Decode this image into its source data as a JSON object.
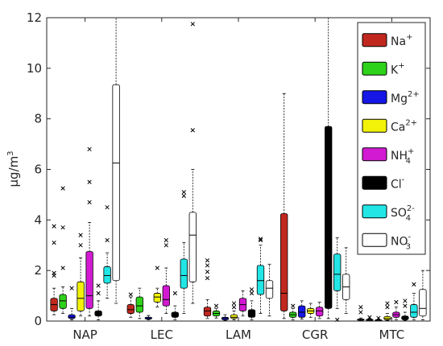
{
  "chart_data": {
    "type": "box",
    "title": "",
    "xlabel": "",
    "ylabel_main": "μg/m",
    "ylabel_sup": "3",
    "ylim": [
      0,
      12
    ],
    "y_ticks": [
      0,
      2,
      4,
      6,
      8,
      10,
      12
    ],
    "y_tick_labels": [
      "0",
      "2",
      "4",
      "6",
      "8",
      "10",
      "12"
    ],
    "categories": [
      "NAP",
      "LEC",
      "LAM",
      "CGR",
      "MTC"
    ],
    "legend_position": "top-right",
    "series": [
      {
        "name": "Na+",
        "base": "Na",
        "sup": "+",
        "sub": "",
        "color": "#c0281e"
      },
      {
        "name": "K+",
        "base": "K",
        "sup": "+",
        "sub": "",
        "color": "#2ed21a"
      },
      {
        "name": "Mg2+",
        "base": "Mg",
        "sup": "2+",
        "sub": "",
        "color": "#1616e6"
      },
      {
        "name": "Ca2+",
        "base": "Ca",
        "sup": "2+",
        "sub": "",
        "color": "#f2f208"
      },
      {
        "name": "NH4+",
        "base": "NH",
        "sup": "+",
        "sub": "4",
        "color": "#d21ad2"
      },
      {
        "name": "Cl-",
        "base": "Cl",
        "sup": "-",
        "sub": "",
        "color": "#000000"
      },
      {
        "name": "SO42-",
        "base": "SO",
        "sup": "2-",
        "sub": "4",
        "color": "#22e6e6"
      },
      {
        "name": "NO3-",
        "base": "NO",
        "sup": "-",
        "sub": "3",
        "color": "#ffffff"
      }
    ],
    "boxes": [
      [
        {
          "wlo": 0.25,
          "q1": 0.4,
          "med": 0.65,
          "q3": 0.9,
          "whi": 1.3,
          "out": [
            1.8,
            1.9,
            3.1,
            3.75
          ]
        },
        {
          "wlo": 0.3,
          "q1": 0.5,
          "med": 0.8,
          "q3": 1.05,
          "whi": 1.35,
          "out": [
            2.1,
            3.7,
            5.25
          ]
        },
        {
          "wlo": 0.05,
          "q1": 0.1,
          "med": 0.15,
          "q3": 0.25,
          "whi": 0.5,
          "out": [
            1.3
          ]
        },
        {
          "wlo": 0.2,
          "q1": 0.4,
          "med": 0.9,
          "q3": 1.55,
          "whi": 2.5,
          "out": [
            3.0,
            3.4
          ]
        },
        {
          "wlo": 0.2,
          "q1": 0.5,
          "med": 1.0,
          "q3": 2.75,
          "whi": 3.9,
          "out": [
            4.7,
            5.5,
            6.8
          ]
        },
        {
          "wlo": 0.05,
          "q1": 0.2,
          "med": 0.3,
          "q3": 0.4,
          "whi": 0.8,
          "out": [
            1.1,
            1.4
          ]
        },
        {
          "wlo": 0.9,
          "q1": 1.5,
          "med": 1.8,
          "q3": 2.15,
          "whi": 2.7,
          "out": [
            3.2,
            4.5
          ]
        },
        {
          "wlo": 0.7,
          "q1": 1.6,
          "med": 6.25,
          "q3": 9.35,
          "whi": 12.0,
          "out": []
        }
      ],
      [
        {
          "wlo": 0.15,
          "q1": 0.3,
          "med": 0.45,
          "q3": 0.65,
          "whi": 0.95,
          "out": [
            1.05
          ]
        },
        {
          "wlo": 0.1,
          "q1": 0.35,
          "med": 0.6,
          "q3": 0.95,
          "whi": 1.3,
          "out": []
        },
        {
          "wlo": 0.05,
          "q1": 0.08,
          "med": 0.1,
          "q3": 0.15,
          "whi": 0.22,
          "out": []
        },
        {
          "wlo": 0.55,
          "q1": 0.75,
          "med": 0.95,
          "q3": 1.1,
          "whi": 1.3,
          "out": [
            2.1
          ]
        },
        {
          "wlo": 0.3,
          "q1": 0.6,
          "med": 0.85,
          "q3": 1.4,
          "whi": 2.1,
          "out": [
            3.0,
            3.2
          ]
        },
        {
          "wlo": 0.05,
          "q1": 0.15,
          "med": 0.25,
          "q3": 0.35,
          "whi": 0.6,
          "out": [
            1.1
          ]
        },
        {
          "wlo": 0.3,
          "q1": 1.3,
          "med": 1.8,
          "q3": 2.45,
          "whi": 3.1,
          "out": [
            4.95,
            5.1
          ]
        },
        {
          "wlo": 0.7,
          "q1": 1.55,
          "med": 3.4,
          "q3": 4.3,
          "whi": 6.0,
          "out": [
            7.55,
            11.75
          ]
        }
      ],
      [
        {
          "wlo": 0.1,
          "q1": 0.2,
          "med": 0.4,
          "q3": 0.55,
          "whi": 0.85,
          "out": [
            1.7,
            1.95,
            2.2,
            2.4
          ]
        },
        {
          "wlo": 0.12,
          "q1": 0.2,
          "med": 0.3,
          "q3": 0.4,
          "whi": 0.5,
          "out": [
            0.6
          ]
        },
        {
          "wlo": 0.02,
          "q1": 0.05,
          "med": 0.1,
          "q3": 0.15,
          "whi": 0.25,
          "out": []
        },
        {
          "wlo": 0.05,
          "q1": 0.1,
          "med": 0.15,
          "q3": 0.25,
          "whi": 0.4,
          "out": [
            0.55,
            0.7
          ]
        },
        {
          "wlo": 0.2,
          "q1": 0.4,
          "med": 0.65,
          "q3": 0.9,
          "whi": 1.2,
          "out": []
        },
        {
          "wlo": 0.05,
          "q1": 0.15,
          "med": 0.3,
          "q3": 0.45,
          "whi": 0.8,
          "out": [
            1.1,
            1.25
          ]
        },
        {
          "wlo": 0.3,
          "q1": 1.05,
          "med": 1.6,
          "q3": 2.2,
          "whi": 3.0,
          "out": [
            3.2,
            3.25
          ]
        },
        {
          "wlo": 0.2,
          "q1": 0.9,
          "med": 1.3,
          "q3": 1.6,
          "whi": 2.25,
          "out": []
        }
      ],
      [
        {
          "wlo": 0.1,
          "q1": 0.4,
          "med": 1.1,
          "q3": 4.25,
          "whi": 9.0,
          "out": []
        },
        {
          "wlo": 0.05,
          "q1": 0.15,
          "med": 0.25,
          "q3": 0.35,
          "whi": 0.5,
          "out": [
            0.6
          ]
        },
        {
          "wlo": 0.08,
          "q1": 0.15,
          "med": 0.35,
          "q3": 0.6,
          "whi": 0.8,
          "out": []
        },
        {
          "wlo": 0.15,
          "q1": 0.3,
          "med": 0.4,
          "q3": 0.5,
          "whi": 0.7,
          "out": []
        },
        {
          "wlo": 0.1,
          "q1": 0.2,
          "med": 0.4,
          "q3": 0.55,
          "whi": 0.75,
          "out": []
        },
        {
          "wlo": 0.1,
          "q1": 0.5,
          "med": 1.2,
          "q3": 7.7,
          "whi": 12.0,
          "out": []
        },
        {
          "wlo": 0.5,
          "q1": 1.2,
          "med": 1.85,
          "q3": 2.65,
          "whi": 3.3,
          "out": [
            0.05
          ]
        },
        {
          "wlo": 0.3,
          "q1": 0.85,
          "med": 1.35,
          "q3": 1.85,
          "whi": 2.9,
          "out": []
        }
      ],
      [
        {
          "wlo": 0.02,
          "q1": 0.04,
          "med": 0.06,
          "q3": 0.08,
          "whi": 0.12,
          "out": [
            0.35,
            0.55
          ]
        },
        {
          "wlo": 0.01,
          "q1": 0.03,
          "med": 0.05,
          "q3": 0.07,
          "whi": 0.1,
          "out": [
            0.15
          ]
        },
        {
          "wlo": 0.01,
          "q1": 0.02,
          "med": 0.03,
          "q3": 0.05,
          "whi": 0.08,
          "out": [
            0.12
          ]
        },
        {
          "wlo": 0.02,
          "q1": 0.05,
          "med": 0.1,
          "q3": 0.18,
          "whi": 0.3,
          "out": [
            0.55,
            0.7
          ]
        },
        {
          "wlo": 0.05,
          "q1": 0.15,
          "med": 0.25,
          "q3": 0.35,
          "whi": 0.55,
          "out": [
            0.75
          ]
        },
        {
          "wlo": 0.02,
          "q1": 0.05,
          "med": 0.1,
          "q3": 0.2,
          "whi": 0.35,
          "out": [
            0.6,
            0.8
          ]
        },
        {
          "wlo": 0.05,
          "q1": 0.15,
          "med": 0.35,
          "q3": 0.65,
          "whi": 1.1,
          "out": [
            1.45
          ]
        },
        {
          "wlo": 0.05,
          "q1": 0.2,
          "med": 0.5,
          "q3": 1.25,
          "whi": 2.0,
          "out": []
        }
      ]
    ]
  }
}
